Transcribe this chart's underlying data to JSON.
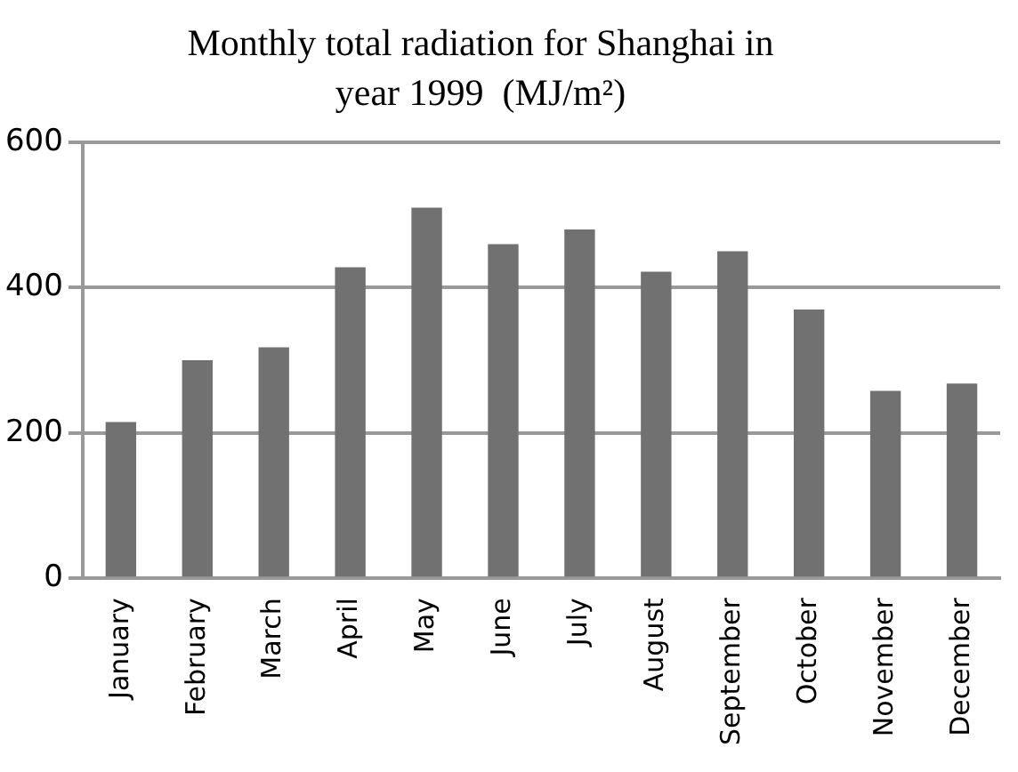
{
  "chart_data": {
    "type": "bar",
    "title": "Monthly total radiation for Shanghai in year 1999  (MJ/m²)",
    "categories": [
      "January",
      "February",
      "March",
      "April",
      "May",
      "June",
      "July",
      "August",
      "September",
      "October",
      "November",
      "December"
    ],
    "values": [
      215,
      300,
      318,
      428,
      510,
      460,
      480,
      422,
      450,
      370,
      258,
      268
    ],
    "color": "#717171",
    "ylim": [
      0,
      600
    ],
    "yticks": [
      0,
      200,
      400,
      600
    ],
    "grid": "y",
    "legend": false
  }
}
